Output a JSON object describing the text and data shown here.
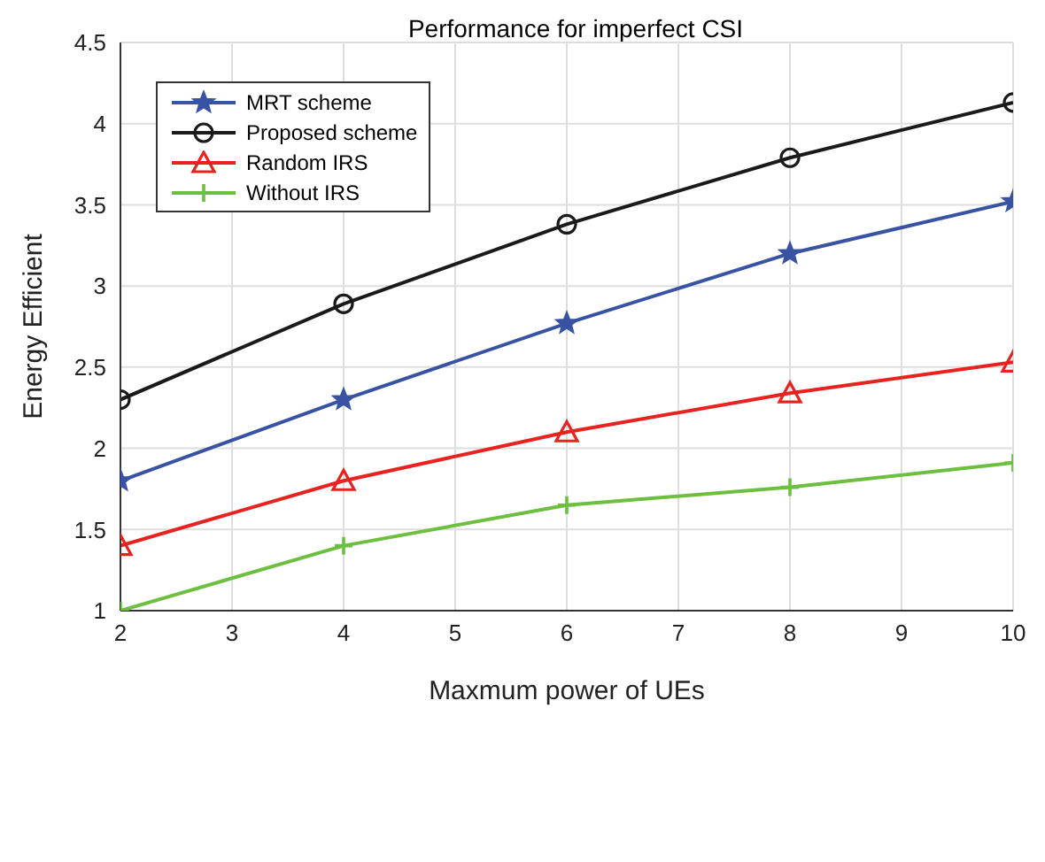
{
  "chart_data": {
    "type": "line",
    "title": "Performance for imperfect CSI",
    "xlabel": "Maxmum power of UEs",
    "ylabel": "Energy Efficient",
    "x": [
      2,
      4,
      6,
      8,
      10
    ],
    "series": [
      {
        "name": "MRT scheme",
        "color": "#3953a4",
        "marker": "star",
        "values": [
          1.8,
          2.3,
          2.77,
          3.2,
          3.52
        ]
      },
      {
        "name": "Proposed scheme",
        "color": "#1a1a1a",
        "marker": "circle",
        "values": [
          2.3,
          2.89,
          3.38,
          3.79,
          4.13
        ]
      },
      {
        "name": "Random IRS",
        "color": "#e8221f",
        "marker": "triangle",
        "values": [
          1.4,
          1.8,
          2.1,
          2.34,
          2.53
        ]
      },
      {
        "name": "Without IRS",
        "color": "#6cbf3f",
        "marker": "cross",
        "values": [
          1.0,
          1.4,
          1.65,
          1.76,
          1.91
        ]
      }
    ],
    "xlim": [
      2,
      10
    ],
    "xticks": [
      2,
      3,
      4,
      5,
      6,
      7,
      8,
      9,
      10
    ],
    "ylim": [
      1,
      4.5
    ],
    "yticks": [
      1,
      1.5,
      2,
      2.5,
      3,
      3.5,
      4,
      4.5
    ],
    "grid": true,
    "legend": "top left",
    "line_style": "solid"
  }
}
